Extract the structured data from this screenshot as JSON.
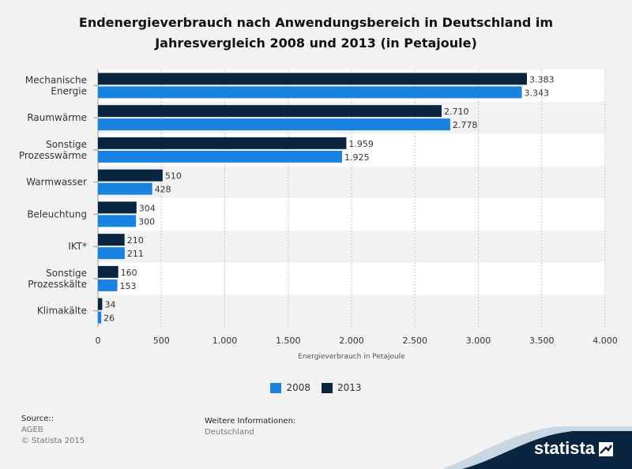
{
  "title_line1": "Endenergieverbrauch nach Anwendungsbereich in Deutschland im",
  "title_line2": "Jahresvergleich 2008 und 2013 (in Petajoule)",
  "chart_data": {
    "type": "bar",
    "orientation": "horizontal",
    "categories": [
      [
        "Mechanische",
        "Energie"
      ],
      [
        "Raumwärme"
      ],
      [
        "Sonstige",
        "Prozesswärme"
      ],
      [
        "Warmwasser"
      ],
      [
        "Beleuchtung"
      ],
      [
        "IKT*"
      ],
      [
        "Sonstige",
        "Prozesskälte"
      ],
      [
        "Klimakälte"
      ]
    ],
    "series": [
      {
        "name": "2013",
        "color": "#0a2540",
        "values": [
          3383,
          2710,
          1959,
          510,
          304,
          210,
          160,
          34
        ],
        "labels": [
          "3.383",
          "2.710",
          "1.959",
          "510",
          "304",
          "210",
          "160",
          "34"
        ]
      },
      {
        "name": "2008",
        "color": "#1a82e0",
        "values": [
          3343,
          2778,
          1925,
          428,
          300,
          211,
          153,
          26
        ],
        "labels": [
          "3.343",
          "2.778",
          "1.925",
          "428",
          "300",
          "211",
          "153",
          "26"
        ]
      }
    ],
    "xlim": [
      0,
      4000
    ],
    "xticks": [
      0,
      500,
      1000,
      1500,
      2000,
      2500,
      3000,
      3500,
      4000
    ],
    "xtick_labels": [
      "0",
      "500",
      "1.000",
      "1.500",
      "2.000",
      "2.500",
      "3.000",
      "3.500",
      "4.000"
    ],
    "xlabel": "Energieverbrauch in Petajoule",
    "grid": true,
    "legend_position": "bottom-center"
  },
  "legend": [
    {
      "label": "2008",
      "color": "#1a82e0"
    },
    {
      "label": "2013",
      "color": "#0a2540"
    }
  ],
  "source": {
    "heading": "Source::",
    "line1": "AGEB",
    "line2": "© Statista 2015"
  },
  "info": {
    "heading": "Weitere Informationen:",
    "line1": "Deutschland"
  },
  "brand": "statista"
}
